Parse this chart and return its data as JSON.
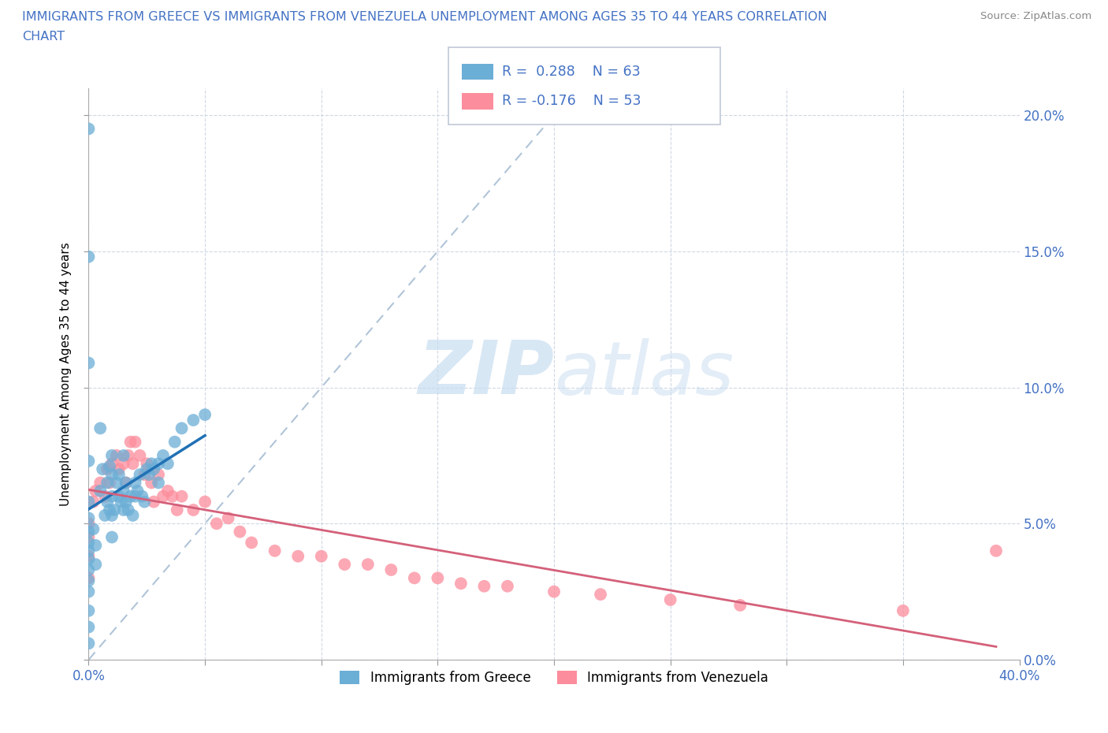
{
  "title_line1": "IMMIGRANTS FROM GREECE VS IMMIGRANTS FROM VENEZUELA UNEMPLOYMENT AMONG AGES 35 TO 44 YEARS CORRELATION",
  "title_line2": "CHART",
  "source": "Source: ZipAtlas.com",
  "ylabel_text": "Unemployment Among Ages 35 to 44 years",
  "xlim": [
    0.0,
    0.4
  ],
  "ylim": [
    0.0,
    0.21
  ],
  "xticks": [
    0.0,
    0.05,
    0.1,
    0.15,
    0.2,
    0.25,
    0.3,
    0.35,
    0.4
  ],
  "yticks": [
    0.0,
    0.05,
    0.1,
    0.15,
    0.2
  ],
  "xticklabels_sparse": {
    "0": "0.0%",
    "8": "40.0%"
  },
  "yticklabels": [
    "",
    "5.0%",
    "10.0%",
    "15.0%",
    "20.0%"
  ],
  "yticklabels_right": [
    "0.0%",
    "5.0%",
    "10.0%",
    "15.0%",
    "20.0%"
  ],
  "greece_color": "#6baed6",
  "venezuela_color": "#fc8d9c",
  "greece_R": 0.288,
  "greece_N": 63,
  "venezuela_R": -0.176,
  "venezuela_N": 53,
  "greece_line_color": "#2171b5",
  "venezuela_line_color": "#d4607a",
  "dashed_line_color": "#b0c4d8",
  "watermark_zip": "ZIP",
  "watermark_atlas": "atlas",
  "background_color": "#ffffff",
  "grid_color": "#d0d8e4",
  "title_color": "#4472c4",
  "tick_color": "#4472c4",
  "legend_label1": "Immigrants from Greece",
  "legend_label2": "Immigrants from Venezuela",
  "greece_scatter_x": [
    0.0,
    0.0,
    0.0,
    0.0,
    0.0,
    0.0,
    0.0,
    0.0,
    0.0,
    0.0,
    0.0,
    0.0,
    0.0,
    0.0,
    0.0,
    0.0,
    0.002,
    0.003,
    0.003,
    0.005,
    0.005,
    0.006,
    0.007,
    0.008,
    0.008,
    0.009,
    0.009,
    0.01,
    0.01,
    0.01,
    0.01,
    0.01,
    0.011,
    0.012,
    0.013,
    0.013,
    0.014,
    0.015,
    0.015,
    0.015,
    0.016,
    0.016,
    0.017,
    0.018,
    0.019,
    0.02,
    0.02,
    0.021,
    0.022,
    0.023,
    0.024,
    0.025,
    0.026,
    0.027,
    0.028,
    0.03,
    0.03,
    0.032,
    0.034,
    0.037,
    0.04,
    0.045,
    0.05
  ],
  "greece_scatter_y": [
    0.195,
    0.148,
    0.109,
    0.073,
    0.058,
    0.052,
    0.047,
    0.043,
    0.04,
    0.037,
    0.033,
    0.029,
    0.025,
    0.018,
    0.012,
    0.006,
    0.048,
    0.042,
    0.035,
    0.085,
    0.062,
    0.07,
    0.053,
    0.065,
    0.058,
    0.071,
    0.055,
    0.075,
    0.068,
    0.06,
    0.053,
    0.045,
    0.055,
    0.065,
    0.068,
    0.06,
    0.058,
    0.075,
    0.062,
    0.055,
    0.065,
    0.058,
    0.055,
    0.06,
    0.053,
    0.065,
    0.06,
    0.062,
    0.068,
    0.06,
    0.058,
    0.07,
    0.068,
    0.072,
    0.07,
    0.072,
    0.065,
    0.075,
    0.072,
    0.08,
    0.085,
    0.088,
    0.09
  ],
  "venezuela_scatter_x": [
    0.0,
    0.0,
    0.0,
    0.0,
    0.002,
    0.003,
    0.005,
    0.007,
    0.008,
    0.009,
    0.01,
    0.012,
    0.013,
    0.015,
    0.016,
    0.017,
    0.018,
    0.019,
    0.02,
    0.022,
    0.024,
    0.025,
    0.027,
    0.028,
    0.03,
    0.032,
    0.034,
    0.036,
    0.038,
    0.04,
    0.045,
    0.05,
    0.055,
    0.06,
    0.065,
    0.07,
    0.08,
    0.09,
    0.1,
    0.11,
    0.12,
    0.13,
    0.14,
    0.15,
    0.16,
    0.17,
    0.18,
    0.2,
    0.22,
    0.25,
    0.28,
    0.35,
    0.39
  ],
  "venezuela_scatter_y": [
    0.05,
    0.045,
    0.038,
    0.03,
    0.058,
    0.062,
    0.065,
    0.06,
    0.07,
    0.065,
    0.072,
    0.075,
    0.07,
    0.072,
    0.065,
    0.075,
    0.08,
    0.072,
    0.08,
    0.075,
    0.068,
    0.072,
    0.065,
    0.058,
    0.068,
    0.06,
    0.062,
    0.06,
    0.055,
    0.06,
    0.055,
    0.058,
    0.05,
    0.052,
    0.047,
    0.043,
    0.04,
    0.038,
    0.038,
    0.035,
    0.035,
    0.033,
    0.03,
    0.03,
    0.028,
    0.027,
    0.027,
    0.025,
    0.024,
    0.022,
    0.02,
    0.018,
    0.04
  ]
}
